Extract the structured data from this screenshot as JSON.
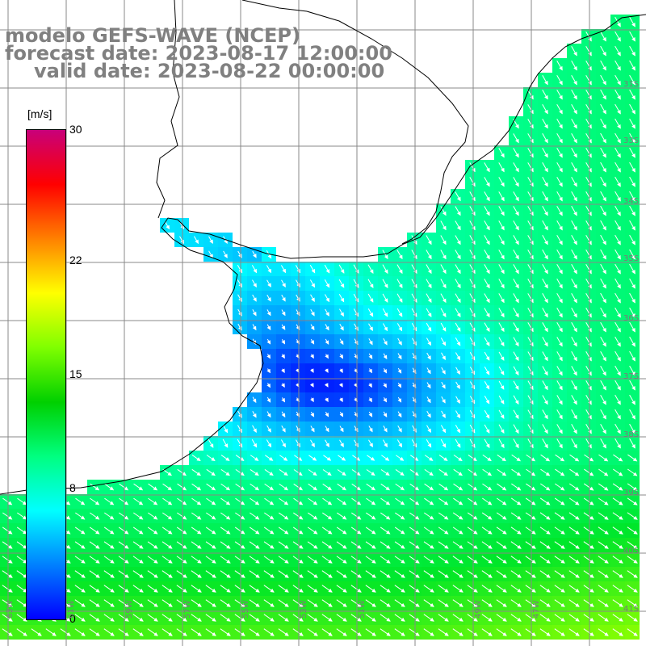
{
  "title": {
    "model": "modelo GEFS-WAVE (NCEP)",
    "forecast_date": "forecast date: 2023-08-17 12:00:00",
    "valid_date": "valid date: 2023-08-22 00:00:00"
  },
  "colorbar": {
    "unit": "[m/s]",
    "min": 0,
    "max": 30,
    "ticks": [
      {
        "label": "30",
        "value": 30
      },
      {
        "label": "22",
        "value": 22
      },
      {
        "label": "15",
        "value": 15
      },
      {
        "label": "8",
        "value": 8
      },
      {
        "label": "0",
        "value": 0
      }
    ],
    "colors": [
      "#0000ff",
      "#0080ff",
      "#00ffff",
      "#00ff80",
      "#00d000",
      "#80ff00",
      "#ffff00",
      "#ff8000",
      "#ff0000",
      "#c8007a"
    ]
  },
  "map": {
    "variable": "wind speed and direction",
    "land_color": "#ffffff",
    "coastline_color": "#000000",
    "grid_color": "#808080",
    "lat_labels": [
      "31S",
      "33S",
      "34S",
      "35S",
      "36S",
      "37S",
      "38S",
      "39S",
      "40S",
      "41S"
    ],
    "lon_labels": [
      "63W",
      "61W",
      "59W",
      "57W",
      "55W",
      "53W",
      "51W",
      "49W",
      "47W"
    ]
  }
}
